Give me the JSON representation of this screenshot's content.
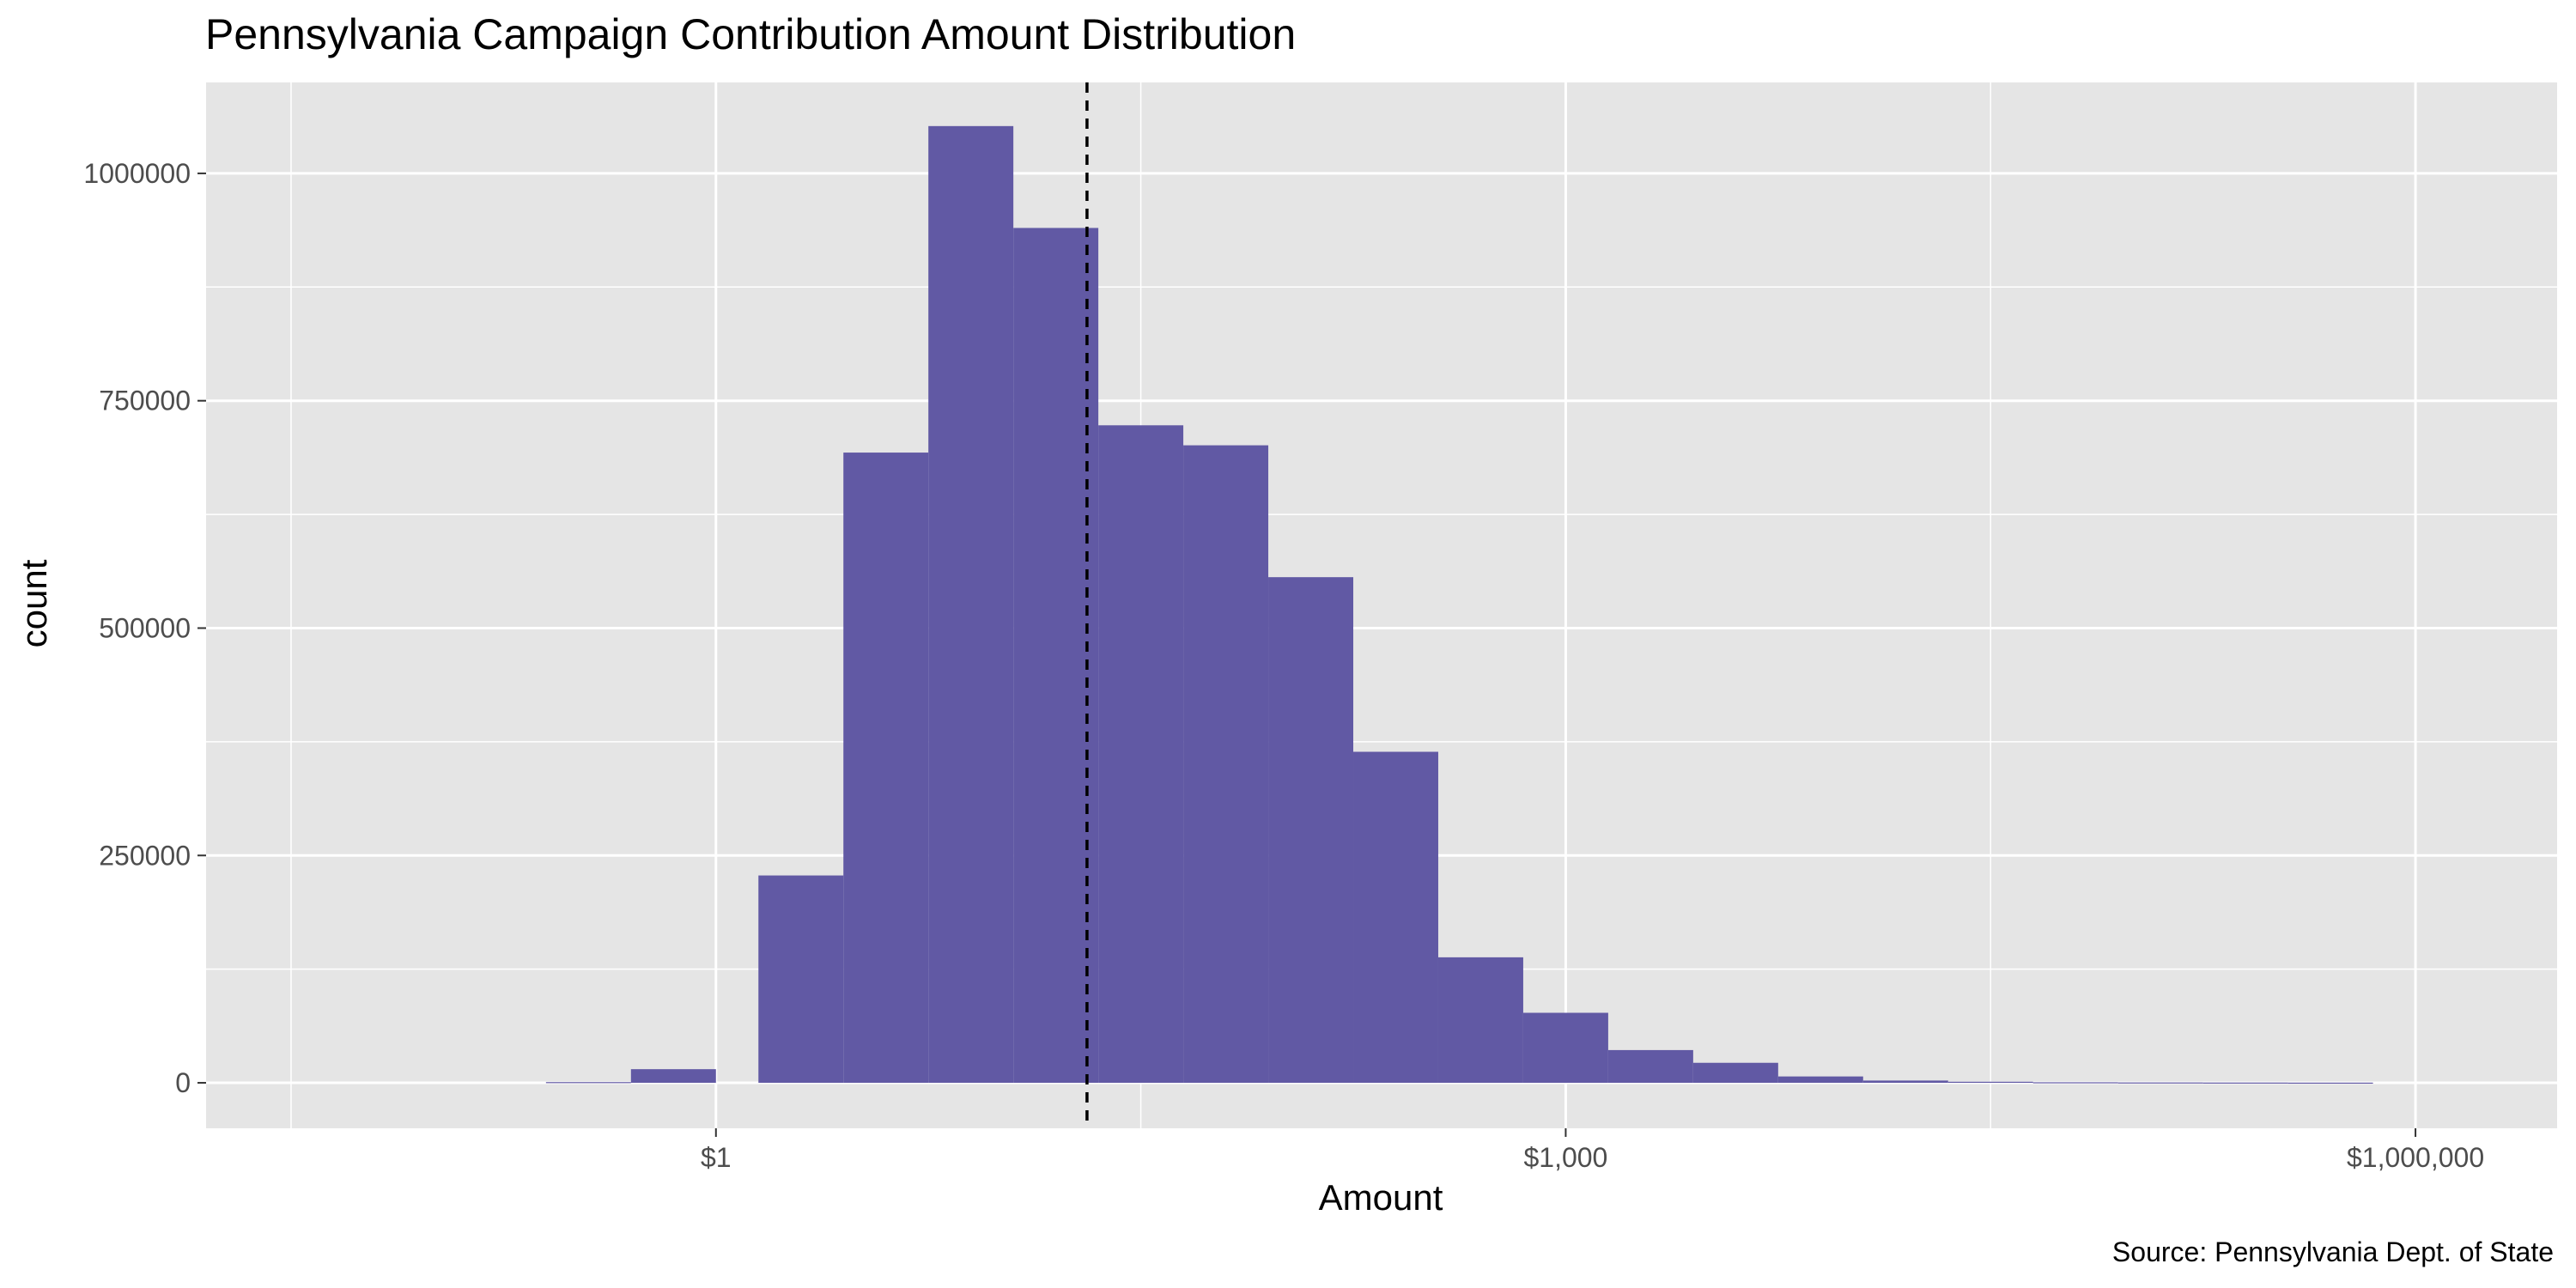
{
  "chart_data": {
    "type": "bar",
    "title": "Pennsylvania Campaign Contribution Amount Distribution",
    "xlabel": "Amount",
    "ylabel": "count",
    "caption": "Source: Pennsylvania Dept. of State",
    "x_scale": "log10",
    "x_range_log10": [
      -1.8,
      6.5
    ],
    "ylim": [
      -50000,
      1100000
    ],
    "x_ticks": [
      {
        "log10": 0,
        "label": "$1"
      },
      {
        "log10": 3,
        "label": "$1,000"
      },
      {
        "log10": 6,
        "label": "$1,000,000"
      }
    ],
    "y_ticks": [
      {
        "value": 0,
        "label": "0"
      },
      {
        "value": 250000,
        "label": "250000"
      },
      {
        "value": 500000,
        "label": "500000"
      },
      {
        "value": 750000,
        "label": "750000"
      },
      {
        "value": 1000000,
        "label": "1000000"
      }
    ],
    "bin_width_log10": 0.3,
    "bins": [
      {
        "start_log10": -0.6,
        "count": 800
      },
      {
        "start_log10": -0.3,
        "count": 15000
      },
      {
        "start_log10": 0.15,
        "count": 228000
      },
      {
        "start_log10": 0.45,
        "count": 693000
      },
      {
        "start_log10": 0.75,
        "count": 1052000
      },
      {
        "start_log10": 1.05,
        "count": 940000
      },
      {
        "start_log10": 1.35,
        "count": 723000
      },
      {
        "start_log10": 1.65,
        "count": 701000
      },
      {
        "start_log10": 1.95,
        "count": 556000
      },
      {
        "start_log10": 2.25,
        "count": 364000
      },
      {
        "start_log10": 2.55,
        "count": 138000
      },
      {
        "start_log10": 2.85,
        "count": 77000
      },
      {
        "start_log10": 3.15,
        "count": 36000
      },
      {
        "start_log10": 3.45,
        "count": 22000
      },
      {
        "start_log10": 3.75,
        "count": 7000
      },
      {
        "start_log10": 4.05,
        "count": 2500
      },
      {
        "start_log10": 4.35,
        "count": 1200
      },
      {
        "start_log10": 4.65,
        "count": 600
      },
      {
        "start_log10": 4.95,
        "count": 400
      },
      {
        "start_log10": 5.25,
        "count": 300
      },
      {
        "start_log10": 5.55,
        "count": 200
      }
    ],
    "median_line_log10": 1.31,
    "colors": {
      "bar": "#6159a4",
      "panel": "#e5e5e5",
      "grid": "#ffffff",
      "median_line": "#000000"
    },
    "grid": true
  }
}
